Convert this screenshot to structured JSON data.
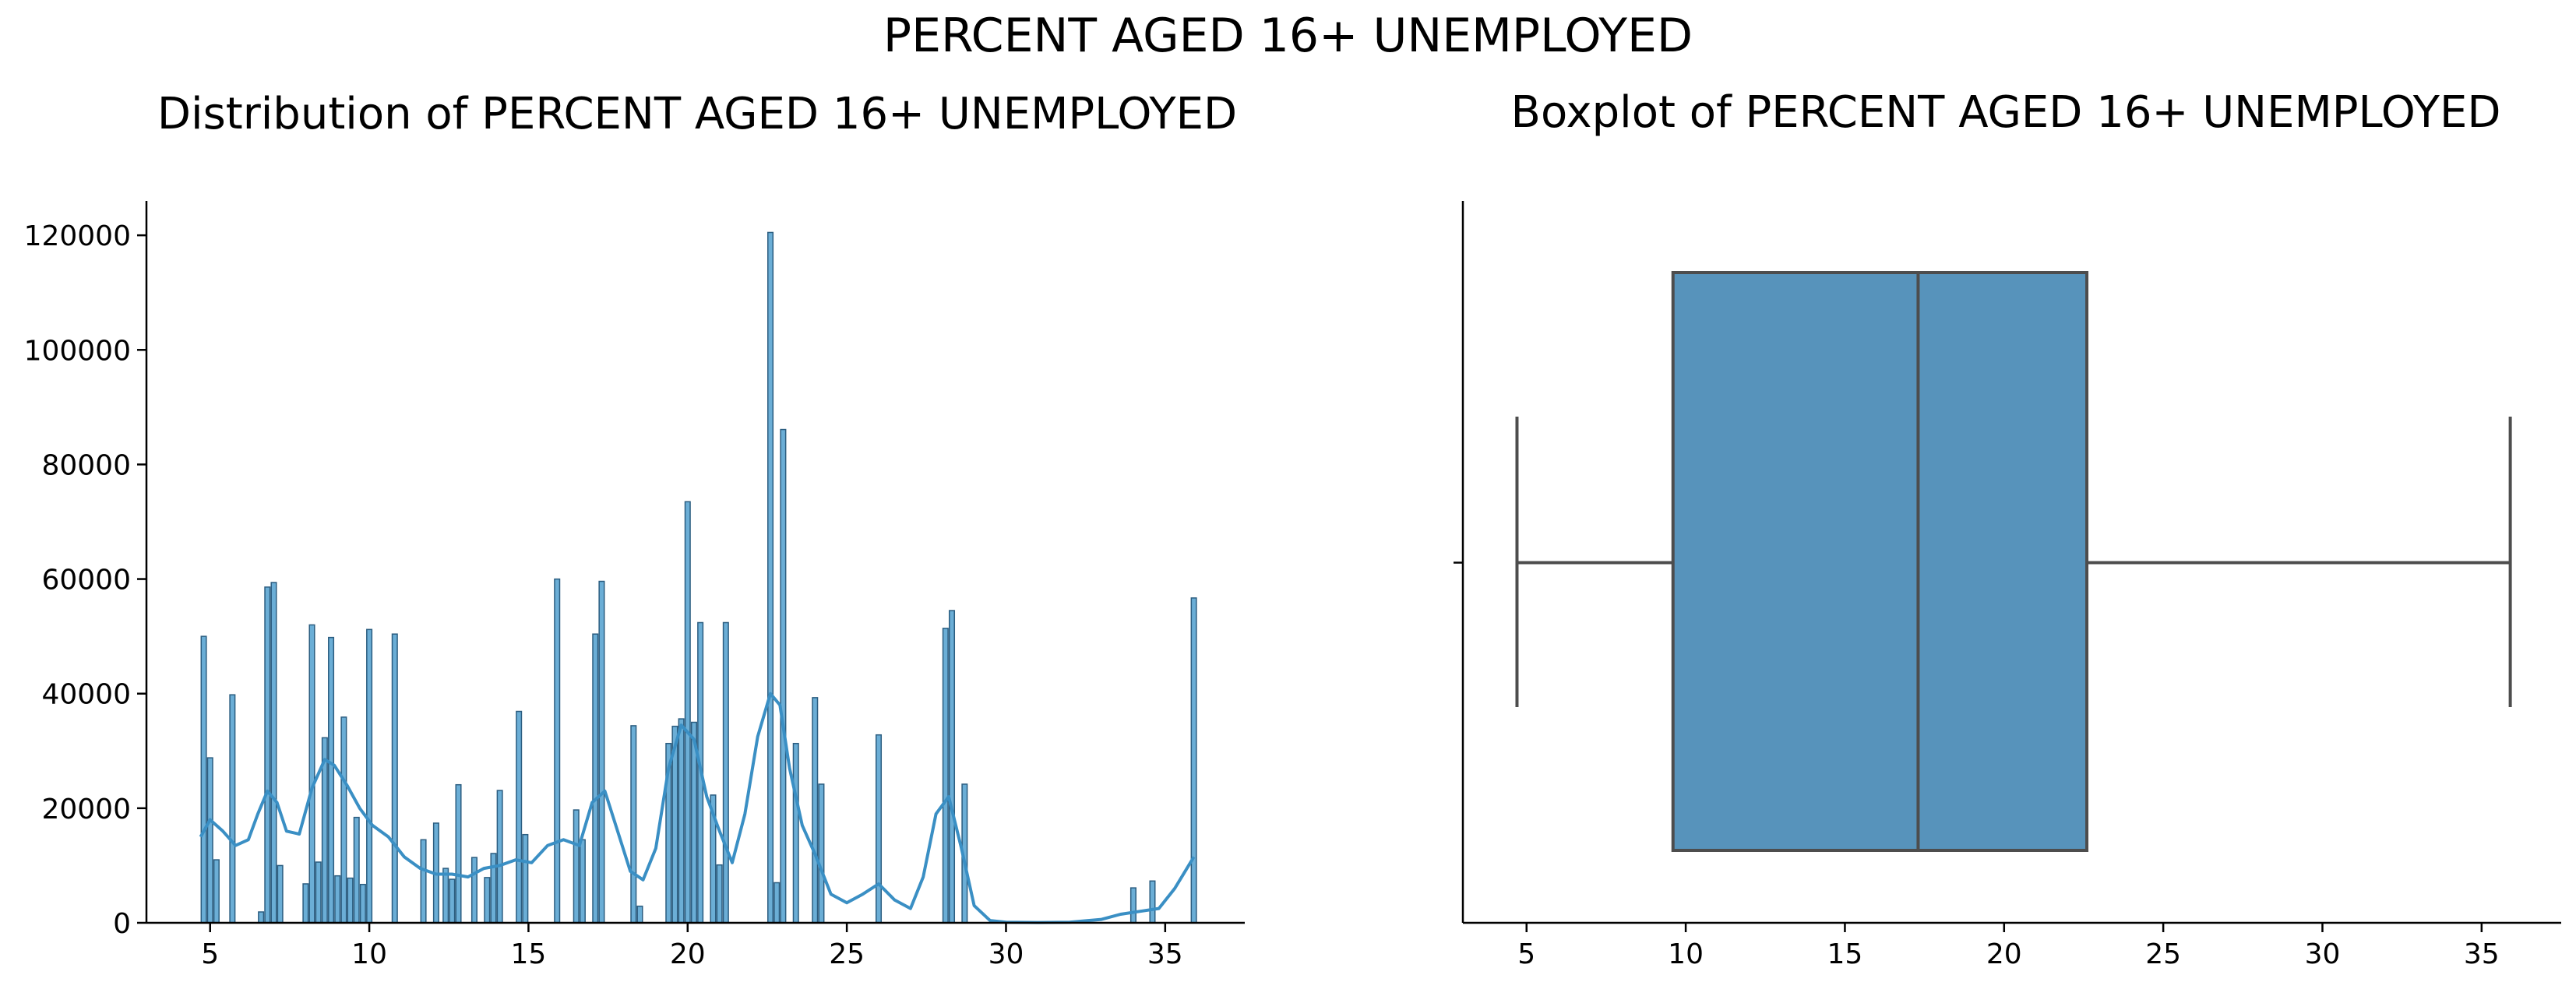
{
  "figure": {
    "suptitle": "PERCENT AGED 16+ UNEMPLOYED",
    "colors": {
      "bar_fill": "#6baed6",
      "bar_edge": "#2b5d80",
      "kde": "#3a8fc4",
      "box_fill": "#5793bb",
      "box_edge": "#4d4d4d",
      "axis": "#000000"
    }
  },
  "chart_data": [
    {
      "type": "histogram",
      "title": "Distribution of PERCENT AGED 16+ UNEMPLOYED",
      "xlabel": "",
      "ylabel": "",
      "xlim": [
        3.0,
        37.5
      ],
      "ylim": [
        0,
        126000
      ],
      "xticks": [
        5,
        10,
        15,
        20,
        25,
        30,
        35
      ],
      "yticks": [
        0,
        20000,
        40000,
        60000,
        80000,
        100000,
        120000
      ],
      "grid": false,
      "bin_width": 0.16,
      "bins": [
        [
          4.8,
          50000
        ],
        [
          5.0,
          28800
        ],
        [
          5.2,
          11000
        ],
        [
          5.7,
          39800
        ],
        [
          6.6,
          1900
        ],
        [
          6.8,
          58600
        ],
        [
          7.0,
          59400
        ],
        [
          7.2,
          10000
        ],
        [
          8.0,
          6800
        ],
        [
          8.2,
          52000
        ],
        [
          8.4,
          10600
        ],
        [
          8.6,
          32300
        ],
        [
          8.8,
          49800
        ],
        [
          9.0,
          8200
        ],
        [
          9.2,
          35900
        ],
        [
          9.4,
          7800
        ],
        [
          9.6,
          18400
        ],
        [
          9.8,
          6700
        ],
        [
          10.0,
          51200
        ],
        [
          10.8,
          50400
        ],
        [
          11.7,
          14500
        ],
        [
          12.1,
          17400
        ],
        [
          12.4,
          9500
        ],
        [
          12.6,
          7600
        ],
        [
          12.8,
          24100
        ],
        [
          13.3,
          11400
        ],
        [
          13.7,
          7900
        ],
        [
          13.9,
          12100
        ],
        [
          14.1,
          23100
        ],
        [
          14.7,
          36900
        ],
        [
          14.9,
          15400
        ],
        [
          15.9,
          60000
        ],
        [
          16.5,
          19700
        ],
        [
          16.7,
          14500
        ],
        [
          17.1,
          50400
        ],
        [
          17.3,
          59600
        ],
        [
          18.3,
          34400
        ],
        [
          18.5,
          2900
        ],
        [
          19.4,
          31300
        ],
        [
          19.6,
          34300
        ],
        [
          19.8,
          35600
        ],
        [
          20.0,
          73500
        ],
        [
          20.2,
          35000
        ],
        [
          20.4,
          52400
        ],
        [
          20.8,
          22300
        ],
        [
          21.0,
          10100
        ],
        [
          21.2,
          52400
        ],
        [
          22.6,
          120500
        ],
        [
          22.8,
          7000
        ],
        [
          23.0,
          86100
        ],
        [
          23.4,
          31300
        ],
        [
          24.0,
          39300
        ],
        [
          24.2,
          24200
        ],
        [
          26.0,
          32800
        ],
        [
          28.1,
          51400
        ],
        [
          28.3,
          54500
        ],
        [
          28.7,
          24200
        ],
        [
          34.0,
          6100
        ],
        [
          34.6,
          7300
        ],
        [
          35.9,
          56700
        ]
      ],
      "kde": {
        "x": [
          4.7,
          5.0,
          5.4,
          5.8,
          6.2,
          6.5,
          6.8,
          7.1,
          7.4,
          7.8,
          8.2,
          8.6,
          8.9,
          9.3,
          9.7,
          10.1,
          10.6,
          11.1,
          11.6,
          12.1,
          12.6,
          13.1,
          13.6,
          14.1,
          14.6,
          15.1,
          15.6,
          16.1,
          16.6,
          17.0,
          17.4,
          17.8,
          18.2,
          18.6,
          19.0,
          19.4,
          19.8,
          20.2,
          20.6,
          21.0,
          21.4,
          21.8,
          22.2,
          22.6,
          22.9,
          23.2,
          23.6,
          24.0,
          24.5,
          25.0,
          25.5,
          26.0,
          26.5,
          27.0,
          27.4,
          27.8,
          28.2,
          28.6,
          29.0,
          29.5,
          30.0,
          31.0,
          32.0,
          33.0,
          33.6,
          34.2,
          34.8,
          35.3,
          35.9
        ],
        "y": [
          15000,
          18000,
          16000,
          13500,
          14500,
          19000,
          23000,
          21000,
          16000,
          15500,
          23500,
          28500,
          27500,
          24000,
          20000,
          17000,
          15000,
          11500,
          9500,
          8500,
          8500,
          8000,
          9500,
          10000,
          11000,
          10500,
          13500,
          14500,
          13500,
          21000,
          23000,
          16000,
          9000,
          7500,
          13000,
          27000,
          34500,
          32000,
          22000,
          16000,
          10500,
          19000,
          32500,
          40000,
          38000,
          27000,
          17000,
          12000,
          5000,
          3500,
          5000,
          6800,
          4000,
          2500,
          8000,
          19000,
          22000,
          13000,
          3000,
          400,
          100,
          50,
          100,
          600,
          1500,
          2000,
          2500,
          6000,
          11500
        ]
      }
    },
    {
      "type": "boxplot",
      "title": "Boxplot of PERCENT AGED 16+ UNEMPLOYED",
      "xlabel": "",
      "ylabel": "",
      "xlim": [
        3.0,
        37.5
      ],
      "xticks": [
        5,
        10,
        15,
        20,
        25,
        30,
        35
      ],
      "whisker_low": 4.7,
      "q1": 9.6,
      "median": 17.3,
      "q3": 22.6,
      "whisker_high": 35.9
    }
  ]
}
